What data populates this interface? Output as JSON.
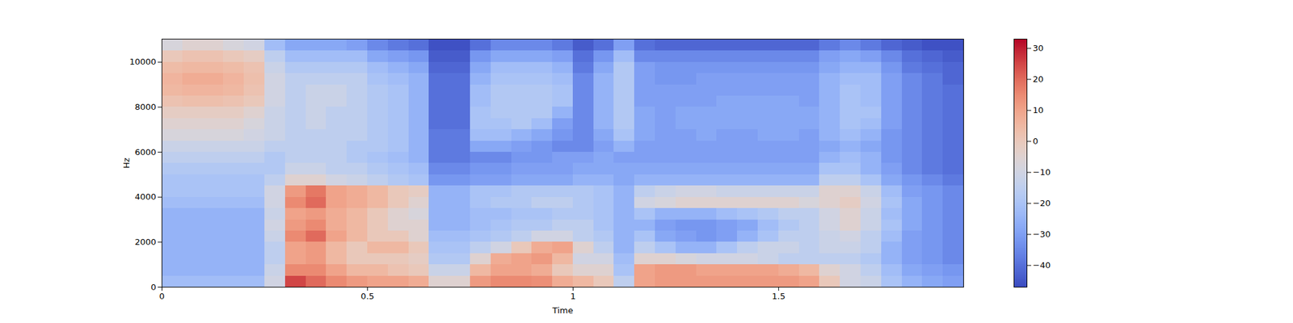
{
  "chart_data": {
    "type": "heatmap",
    "xlabel": "Time",
    "ylabel": "Hz",
    "xlim": [
      0,
      1.95
    ],
    "xticks": [
      0,
      0.5,
      1,
      1.5
    ],
    "ylim": [
      0,
      11025
    ],
    "yticks": [
      0,
      2000,
      4000,
      6000,
      8000,
      10000
    ],
    "x_bins": [
      0,
      0.05,
      0.1,
      0.15,
      0.2,
      0.25,
      0.3,
      0.35,
      0.4,
      0.45,
      0.5,
      0.55,
      0.6,
      0.65,
      0.7,
      0.75,
      0.8,
      0.85,
      0.9,
      0.95,
      1,
      1.05,
      1.1,
      1.15,
      1.2,
      1.25,
      1.3,
      1.35,
      1.4,
      1.45,
      1.5,
      1.55,
      1.6,
      1.65,
      1.7,
      1.75,
      1.8,
      1.85,
      1.9,
      1.95
    ],
    "y_bins": [
      0,
      500,
      1000,
      1500,
      2000,
      2500,
      3000,
      3500,
      4000,
      4500,
      5000,
      5500,
      6000,
      6500,
      7000,
      7500,
      8000,
      8500,
      9000,
      9500,
      10000,
      10500,
      11025
    ],
    "values": [
      [
        -22,
        -22,
        -22,
        -22,
        -22,
        -10,
        25,
        20,
        15,
        12,
        10,
        10,
        8,
        -5,
        -5,
        12,
        15,
        15,
        14,
        8,
        5,
        0,
        -15,
        10,
        12,
        12,
        12,
        12,
        12,
        12,
        12,
        10,
        0,
        -10,
        -12,
        -20,
        -25,
        -28,
        -30
      ],
      [
        -25,
        -25,
        -25,
        -25,
        -25,
        -12,
        15,
        15,
        10,
        5,
        5,
        2,
        0,
        -12,
        -12,
        5,
        10,
        10,
        8,
        0,
        -5,
        -5,
        -20,
        10,
        12,
        12,
        10,
        10,
        10,
        10,
        8,
        5,
        -5,
        -10,
        -15,
        -22,
        -28,
        -30,
        -32
      ],
      [
        -25,
        -25,
        -25,
        -25,
        -25,
        -15,
        10,
        12,
        5,
        0,
        0,
        0,
        -2,
        -18,
        -18,
        -5,
        8,
        10,
        12,
        5,
        -10,
        -10,
        -22,
        -5,
        -5,
        -8,
        -10,
        -10,
        -10,
        -12,
        -15,
        -15,
        -15,
        -15,
        -18,
        -25,
        -30,
        -32,
        -35
      ],
      [
        -25,
        -25,
        -25,
        -25,
        -25,
        -15,
        10,
        12,
        5,
        0,
        5,
        5,
        0,
        -20,
        -20,
        -15,
        -10,
        0,
        8,
        10,
        -5,
        -15,
        -25,
        -15,
        -20,
        -25,
        -25,
        -20,
        -15,
        -12,
        -12,
        -15,
        -12,
        -12,
        -15,
        -25,
        -30,
        -32,
        -35
      ],
      [
        -25,
        -25,
        -25,
        -25,
        -25,
        -12,
        15,
        20,
        10,
        5,
        0,
        0,
        -5,
        -22,
        -22,
        -20,
        -18,
        -15,
        -10,
        -10,
        -15,
        -18,
        -25,
        -20,
        -28,
        -30,
        -32,
        -30,
        -25,
        -20,
        -15,
        -15,
        -12,
        -10,
        -15,
        -22,
        -30,
        -32,
        -35
      ],
      [
        -25,
        -25,
        -25,
        -25,
        -25,
        -10,
        12,
        15,
        8,
        5,
        0,
        -5,
        -5,
        -25,
        -25,
        -22,
        -20,
        -18,
        -18,
        -15,
        -15,
        -20,
        -25,
        -25,
        -30,
        -32,
        -32,
        -30,
        -28,
        -22,
        -18,
        -15,
        -10,
        -5,
        -12,
        -20,
        -28,
        -32,
        -35
      ],
      [
        -25,
        -25,
        -25,
        -25,
        -25,
        -12,
        10,
        12,
        8,
        5,
        0,
        -5,
        -8,
        -25,
        -25,
        -22,
        -22,
        -20,
        -20,
        -18,
        -18,
        -20,
        -25,
        -20,
        -25,
        -25,
        -25,
        -22,
        -20,
        -18,
        -15,
        -15,
        -10,
        -5,
        -12,
        -22,
        -28,
        -32,
        -35
      ],
      [
        -22,
        -22,
        -22,
        -22,
        -22,
        -10,
        15,
        20,
        10,
        8,
        5,
        0,
        -5,
        -25,
        -25,
        -20,
        -18,
        -18,
        -15,
        -15,
        -18,
        -20,
        -25,
        -10,
        -8,
        -5,
        -5,
        -5,
        -5,
        -5,
        -5,
        -8,
        -5,
        -2,
        -10,
        -20,
        -28,
        -32,
        -35
      ],
      [
        -20,
        -20,
        -20,
        -20,
        -20,
        -10,
        12,
        18,
        10,
        8,
        5,
        0,
        -2,
        -25,
        -25,
        -20,
        -20,
        -18,
        -18,
        -18,
        -18,
        -20,
        -25,
        -15,
        -12,
        -10,
        -10,
        -12,
        -12,
        -12,
        -12,
        -12,
        -5,
        -5,
        -12,
        -22,
        -30,
        -32,
        -35
      ],
      [
        -20,
        -20,
        -20,
        -20,
        -20,
        -15,
        -5,
        -5,
        -10,
        -12,
        -15,
        -18,
        -20,
        -32,
        -32,
        -30,
        -30,
        -28,
        -28,
        -28,
        -25,
        -25,
        -28,
        -25,
        -25,
        -25,
        -25,
        -25,
        -25,
        -25,
        -25,
        -25,
        -15,
        -15,
        -20,
        -28,
        -32,
        -35,
        -38
      ],
      [
        -18,
        -18,
        -18,
        -18,
        -18,
        -18,
        -12,
        -12,
        -15,
        -15,
        -18,
        -20,
        -22,
        -35,
        -35,
        -32,
        -32,
        -30,
        -30,
        -30,
        -28,
        -28,
        -28,
        -28,
        -28,
        -28,
        -28,
        -28,
        -28,
        -28,
        -28,
        -28,
        -20,
        -20,
        -25,
        -30,
        -35,
        -38,
        -40
      ],
      [
        -15,
        -15,
        -15,
        -15,
        -15,
        -18,
        -15,
        -15,
        -15,
        -18,
        -20,
        -22,
        -25,
        -38,
        -38,
        -35,
        -35,
        -32,
        -32,
        -30,
        -30,
        -28,
        -30,
        -30,
        -30,
        -30,
        -30,
        -30,
        -30,
        -30,
        -30,
        -30,
        -25,
        -22,
        -25,
        -32,
        -35,
        -38,
        -40
      ],
      [
        -12,
        -12,
        -12,
        -12,
        -12,
        -15,
        -15,
        -15,
        -15,
        -18,
        -18,
        -20,
        -25,
        -38,
        -38,
        -28,
        -28,
        -30,
        -32,
        -35,
        -35,
        -30,
        -25,
        -30,
        -30,
        -30,
        -30,
        -30,
        -30,
        -30,
        -30,
        -30,
        -28,
        -25,
        -28,
        -32,
        -35,
        -38,
        -40
      ],
      [
        -8,
        -8,
        -8,
        -8,
        -10,
        -12,
        -15,
        -15,
        -15,
        -15,
        -18,
        -20,
        -25,
        -38,
        -38,
        -22,
        -22,
        -25,
        -28,
        -32,
        -35,
        -28,
        -20,
        -28,
        -30,
        -30,
        -28,
        -30,
        -30,
        -28,
        -28,
        -30,
        -25,
        -22,
        -25,
        -32,
        -35,
        -38,
        -40
      ],
      [
        -5,
        -5,
        -5,
        -5,
        -8,
        -12,
        -15,
        -12,
        -15,
        -15,
        -18,
        -20,
        -25,
        -40,
        -40,
        -20,
        -20,
        -18,
        -22,
        -30,
        -35,
        -25,
        -18,
        -28,
        -30,
        -28,
        -28,
        -28,
        -28,
        -28,
        -28,
        -28,
        -25,
        -20,
        -22,
        -30,
        -35,
        -38,
        -40
      ],
      [
        -2,
        -2,
        -2,
        -2,
        -5,
        -12,
        -15,
        -12,
        -15,
        -15,
        -18,
        -20,
        -25,
        -40,
        -40,
        -20,
        -18,
        -18,
        -18,
        -25,
        -35,
        -25,
        -18,
        -28,
        -30,
        -28,
        -28,
        -28,
        -28,
        -28,
        -28,
        -28,
        -25,
        -20,
        -20,
        -30,
        -35,
        -38,
        -40
      ],
      [
        2,
        3,
        3,
        2,
        0,
        -10,
        -15,
        -12,
        -12,
        -15,
        -18,
        -20,
        -25,
        -40,
        -40,
        -22,
        -18,
        -18,
        -18,
        -20,
        -35,
        -25,
        -18,
        -30,
        -30,
        -30,
        -30,
        -28,
        -28,
        -28,
        -28,
        -30,
        -25,
        -20,
        -22,
        -30,
        -35,
        -38,
        -40
      ],
      [
        5,
        6,
        6,
        5,
        2,
        -10,
        -15,
        -12,
        -12,
        -15,
        -18,
        -20,
        -25,
        -40,
        -40,
        -22,
        -18,
        -18,
        -18,
        -20,
        -35,
        -25,
        -18,
        -30,
        -30,
        -30,
        -30,
        -30,
        -30,
        -30,
        -30,
        -30,
        -25,
        -20,
        -22,
        -30,
        -35,
        -38,
        -40
      ],
      [
        6,
        8,
        8,
        6,
        3,
        -10,
        -15,
        -15,
        -15,
        -15,
        -20,
        -22,
        -25,
        -40,
        -40,
        -25,
        -20,
        -20,
        -20,
        -22,
        -35,
        -25,
        -18,
        -30,
        -32,
        -32,
        -30,
        -30,
        -30,
        -30,
        -30,
        -30,
        -25,
        -22,
        -22,
        -30,
        -35,
        -38,
        -42
      ],
      [
        4,
        5,
        5,
        4,
        2,
        -12,
        -18,
        -18,
        -18,
        -18,
        -22,
        -25,
        -28,
        -42,
        -42,
        -28,
        -22,
        -22,
        -22,
        -25,
        -38,
        -28,
        -18,
        -30,
        -32,
        -32,
        -32,
        -32,
        -32,
        -32,
        -32,
        -32,
        -28,
        -25,
        -25,
        -32,
        -38,
        -40,
        -42
      ],
      [
        0,
        2,
        2,
        0,
        -2,
        -15,
        -22,
        -22,
        -22,
        -22,
        -28,
        -30,
        -32,
        -44,
        -44,
        -32,
        -28,
        -28,
        -28,
        -30,
        -40,
        -32,
        -22,
        -35,
        -35,
        -35,
        -35,
        -35,
        -35,
        -35,
        -35,
        -35,
        -30,
        -28,
        -30,
        -35,
        -40,
        -42,
        -44
      ],
      [
        -8,
        -5,
        -5,
        -8,
        -10,
        -22,
        -28,
        -28,
        -28,
        -30,
        -35,
        -38,
        -40,
        -46,
        -46,
        -40,
        -35,
        -35,
        -35,
        -38,
        -44,
        -40,
        -30,
        -40,
        -42,
        -42,
        -42,
        -42,
        -42,
        -42,
        -42,
        -42,
        -38,
        -35,
        -38,
        -42,
        -44,
        -46,
        -46
      ]
    ],
    "colorbar": {
      "range": [
        -47,
        33
      ],
      "ticks": [
        {
          "value": -40,
          "label": "−40"
        },
        {
          "value": -30,
          "label": "−30"
        },
        {
          "value": -20,
          "label": "−20"
        },
        {
          "value": -10,
          "label": "−10"
        },
        0,
        10,
        20,
        30
      ]
    }
  }
}
